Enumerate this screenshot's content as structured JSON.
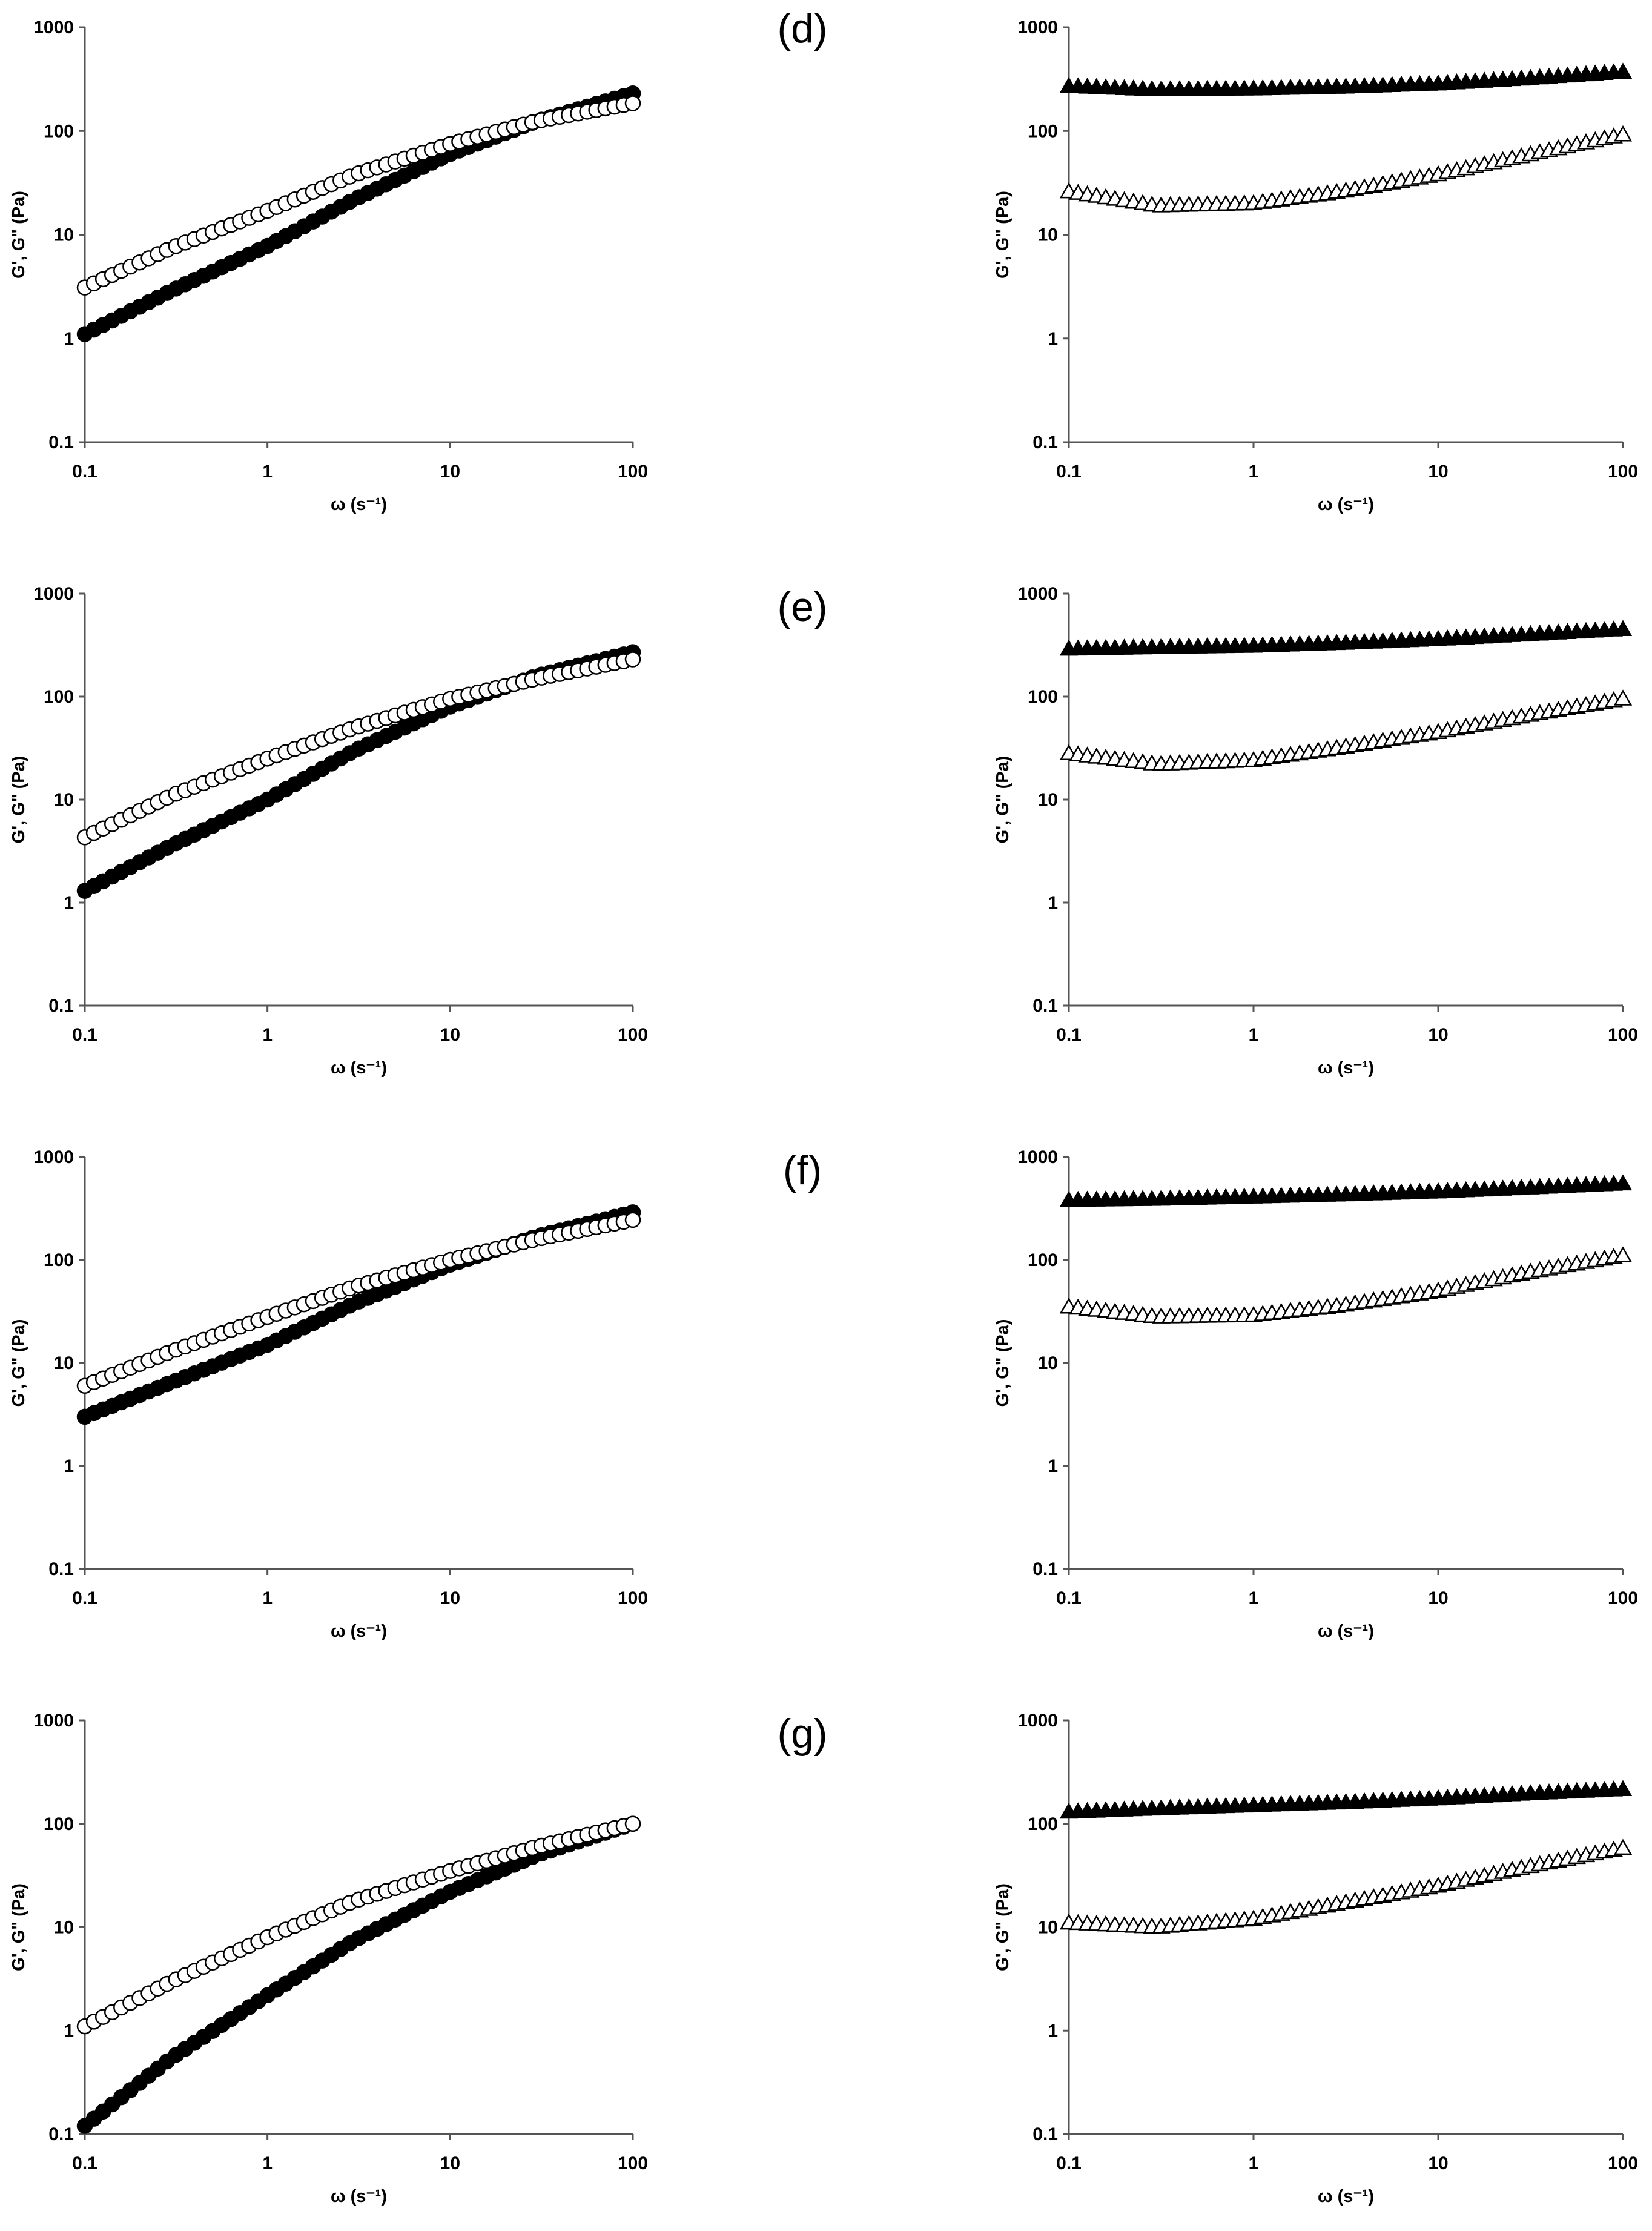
{
  "figure": {
    "panel_labels": [
      "(d)",
      "(e)",
      "(f)",
      "(g)"
    ]
  },
  "chart_data": [
    {
      "id": "d-left",
      "type": "scatter",
      "xscale": "log",
      "yscale": "log",
      "xlim": [
        0.1,
        100
      ],
      "ylim": [
        0.1,
        1000
      ],
      "xticks": [
        "0.1",
        "1",
        "10",
        "100"
      ],
      "yticks": [
        "0.1",
        "1",
        "10",
        "100",
        "1000"
      ],
      "xlabel": "ω (s⁻¹)",
      "ylabel": "G', G\" (Pa)",
      "series": [
        {
          "name": "G'",
          "marker": "circle",
          "filled": true,
          "x": [
            0.1,
            0.3,
            1,
            3,
            10,
            30,
            100
          ],
          "y": [
            1.1,
            2.9,
            7.8,
            22,
            60,
            125,
            230
          ]
        },
        {
          "name": "G\"",
          "marker": "circle",
          "filled": false,
          "x": [
            0.1,
            0.3,
            1,
            3,
            10,
            30,
            100
          ],
          "y": [
            3.1,
            7.5,
            17,
            38,
            75,
            125,
            185
          ]
        }
      ]
    },
    {
      "id": "d-right",
      "type": "scatter",
      "xscale": "log",
      "yscale": "log",
      "xlim": [
        0.1,
        100
      ],
      "ylim": [
        0.1,
        1000
      ],
      "xticks": [
        "0.1",
        "1",
        "10",
        "100"
      ],
      "yticks": [
        "0.1",
        "1",
        "10",
        "100",
        "1000"
      ],
      "xlabel": "ω (s⁻¹)",
      "ylabel": "G', G\" (Pa)",
      "series": [
        {
          "name": "G'",
          "marker": "triangle",
          "filled": true,
          "x": [
            0.1,
            0.3,
            1,
            3,
            10,
            30,
            100
          ],
          "y": [
            270,
            250,
            255,
            265,
            285,
            320,
            370
          ]
        },
        {
          "name": "G\"",
          "marker": "triangle",
          "filled": false,
          "x": [
            0.1,
            0.3,
            1,
            3,
            10,
            30,
            100
          ],
          "y": [
            26,
            19,
            20,
            26,
            38,
            58,
            92
          ]
        }
      ]
    },
    {
      "id": "e-left",
      "type": "scatter",
      "xscale": "log",
      "yscale": "log",
      "xlim": [
        0.1,
        100
      ],
      "ylim": [
        0.1,
        1000
      ],
      "xticks": [
        "0.1",
        "1",
        "10",
        "100"
      ],
      "yticks": [
        "0.1",
        "1",
        "10",
        "100",
        "1000"
      ],
      "xlabel": "ω (s⁻¹)",
      "ylabel": "G', G\" (Pa)",
      "series": [
        {
          "name": "G'",
          "marker": "circle",
          "filled": true,
          "x": [
            0.1,
            0.3,
            1,
            3,
            10,
            30,
            100
          ],
          "y": [
            1.3,
            3.6,
            10,
            30,
            80,
            160,
            270
          ]
        },
        {
          "name": "G\"",
          "marker": "circle",
          "filled": false,
          "x": [
            0.1,
            0.3,
            1,
            3,
            10,
            30,
            100
          ],
          "y": [
            4.3,
            11,
            25,
            50,
            95,
            150,
            230
          ]
        }
      ]
    },
    {
      "id": "e-right",
      "type": "scatter",
      "xscale": "log",
      "yscale": "log",
      "xlim": [
        0.1,
        100
      ],
      "ylim": [
        0.1,
        1000
      ],
      "xticks": [
        "0.1",
        "1",
        "10",
        "100"
      ],
      "yticks": [
        "0.1",
        "1",
        "10",
        "100",
        "1000"
      ],
      "xlabel": "ω (s⁻¹)",
      "ylabel": "G', G\" (Pa)",
      "series": [
        {
          "name": "G'",
          "marker": "triangle",
          "filled": true,
          "x": [
            0.1,
            0.3,
            1,
            3,
            10,
            30,
            100
          ],
          "y": [
            290,
            300,
            310,
            330,
            360,
            400,
            450
          ]
        },
        {
          "name": "G\"",
          "marker": "triangle",
          "filled": false,
          "x": [
            0.1,
            0.3,
            1,
            3,
            10,
            30,
            100
          ],
          "y": [
            28,
            22,
            24,
            32,
            45,
            65,
            95
          ]
        }
      ]
    },
    {
      "id": "f-left",
      "type": "scatter",
      "xscale": "log",
      "yscale": "log",
      "xlim": [
        0.1,
        100
      ],
      "ylim": [
        0.1,
        1000
      ],
      "xticks": [
        "0.1",
        "1",
        "10",
        "100"
      ],
      "yticks": [
        "0.1",
        "1",
        "10",
        "100",
        "1000"
      ],
      "xlabel": "ω (s⁻¹)",
      "ylabel": "G', G\" (Pa)",
      "series": [
        {
          "name": "G'",
          "marker": "circle",
          "filled": true,
          "x": [
            0.1,
            0.3,
            1,
            3,
            10,
            30,
            100
          ],
          "y": [
            3,
            6.5,
            15,
            38,
            90,
            170,
            290
          ]
        },
        {
          "name": "G\"",
          "marker": "circle",
          "filled": false,
          "x": [
            0.1,
            0.3,
            1,
            3,
            10,
            30,
            100
          ],
          "y": [
            6,
            13,
            28,
            55,
            100,
            160,
            245
          ]
        }
      ]
    },
    {
      "id": "f-right",
      "type": "scatter",
      "xscale": "log",
      "yscale": "log",
      "xlim": [
        0.1,
        100
      ],
      "ylim": [
        0.1,
        1000
      ],
      "xticks": [
        "0.1",
        "1",
        "10",
        "100"
      ],
      "yticks": [
        "0.1",
        "1",
        "10",
        "100",
        "1000"
      ],
      "xlabel": "ω (s⁻¹)",
      "ylabel": "G', G\" (Pa)",
      "series": [
        {
          "name": "G'",
          "marker": "triangle",
          "filled": true,
          "x": [
            0.1,
            0.3,
            1,
            3,
            10,
            30,
            100
          ],
          "y": [
            380,
            390,
            410,
            430,
            460,
            500,
            550
          ]
        },
        {
          "name": "G\"",
          "marker": "triangle",
          "filled": false,
          "x": [
            0.1,
            0.3,
            1,
            3,
            10,
            30,
            100
          ],
          "y": [
            35,
            28,
            29,
            36,
            50,
            75,
            110
          ]
        }
      ]
    },
    {
      "id": "g-left",
      "type": "scatter",
      "xscale": "log",
      "yscale": "log",
      "xlim": [
        0.1,
        100
      ],
      "ylim": [
        0.1,
        1000
      ],
      "xticks": [
        "0.1",
        "1",
        "10",
        "100"
      ],
      "yticks": [
        "0.1",
        "1",
        "10",
        "100",
        "1000"
      ],
      "xlabel": "ω (s⁻¹)",
      "ylabel": "G', G\" (Pa)",
      "series": [
        {
          "name": "G'",
          "marker": "circle",
          "filled": true,
          "x": [
            0.1,
            0.3,
            1,
            3,
            10,
            30,
            100
          ],
          "y": [
            0.12,
            0.55,
            2.2,
            7.5,
            22,
            50,
            100
          ]
        },
        {
          "name": "G\"",
          "marker": "circle",
          "filled": false,
          "x": [
            0.1,
            0.3,
            1,
            3,
            10,
            30,
            100
          ],
          "y": [
            1.1,
            3,
            8,
            18,
            35,
            60,
            100
          ]
        }
      ]
    },
    {
      "id": "g-right",
      "type": "scatter",
      "xscale": "log",
      "yscale": "log",
      "xlim": [
        0.1,
        100
      ],
      "ylim": [
        0.1,
        1000
      ],
      "xticks": [
        "0.1",
        "1",
        "10",
        "100"
      ],
      "yticks": [
        "0.1",
        "1",
        "10",
        "100",
        "1000"
      ],
      "xlabel": "ω (s⁻¹)",
      "ylabel": "G', G\" (Pa)",
      "series": [
        {
          "name": "G'",
          "marker": "triangle",
          "filled": true,
          "x": [
            0.1,
            0.3,
            1,
            3,
            10,
            30,
            100
          ],
          "y": [
            130,
            140,
            150,
            160,
            175,
            195,
            215
          ]
        },
        {
          "name": "G\"",
          "marker": "triangle",
          "filled": false,
          "x": [
            0.1,
            0.3,
            1,
            3,
            10,
            30,
            100
          ],
          "y": [
            11,
            10,
            12,
            17,
            25,
            38,
            58
          ]
        }
      ]
    }
  ]
}
